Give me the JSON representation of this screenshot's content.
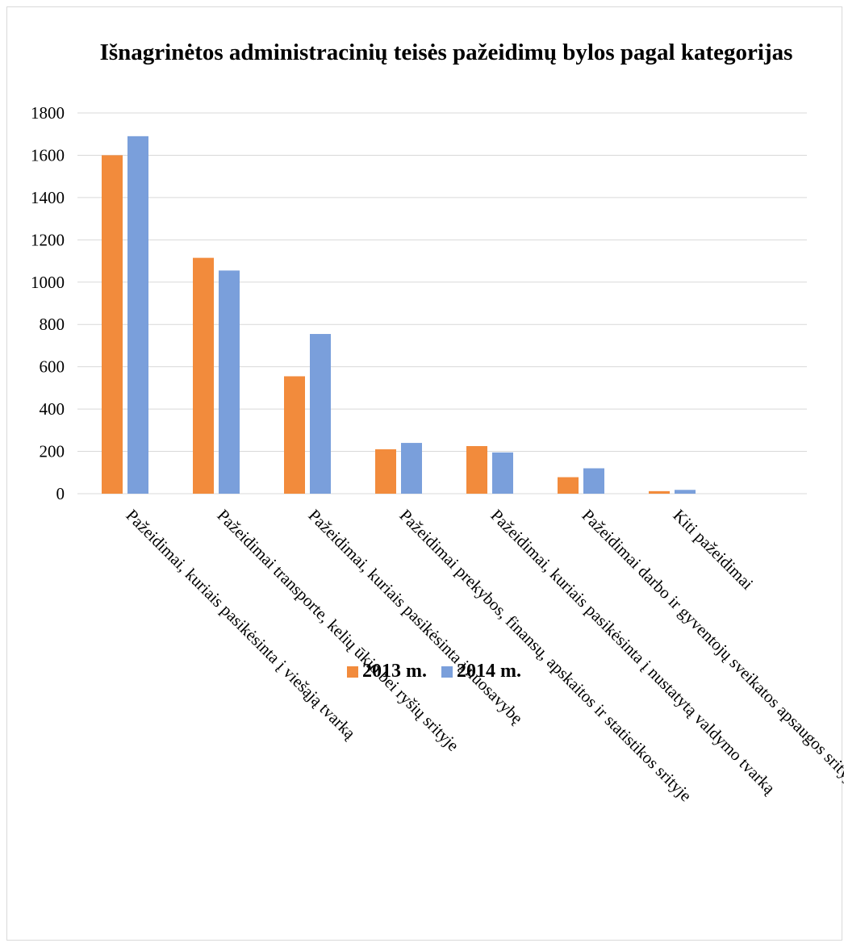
{
  "chart_data": {
    "type": "bar",
    "title": "Išnagrinėtos administracinių teisės pažeidimų bylos pagal kategorijas",
    "categories": [
      "Pažeidimai, kuriais pasikėsinta į viešąją tvarką",
      "Pažeidimai transporte, kelių ūkio bei ryšių srityje",
      "Pažeidimai, kuriais pasikėsinta į nuosavybę",
      "Pažeidimai prekybos, finansų, apskaitos ir statistikos srityje",
      "Pažeidimai, kuriais pasikėsinta į nustatytą valdymo tvarką",
      "Pažeidimai darbo ir gyventojų sveikatos apsaugos srityje",
      "Kiti pažeidimai"
    ],
    "series": [
      {
        "name": "2013 m.",
        "color": "#f28b3c",
        "values": [
          1600,
          1115,
          555,
          210,
          225,
          78,
          12
        ]
      },
      {
        "name": "2014 m.",
        "color": "#7a9fdb",
        "values": [
          1690,
          1055,
          755,
          240,
          195,
          120,
          18
        ]
      }
    ],
    "y_ticks": [
      "0",
      "200",
      "400",
      "600",
      "800",
      "1000",
      "1200",
      "1400",
      "1600",
      "1800"
    ],
    "ylim": [
      0,
      1800
    ],
    "grid": true,
    "legend_position": "bottom",
    "xlabel": "",
    "ylabel": ""
  }
}
